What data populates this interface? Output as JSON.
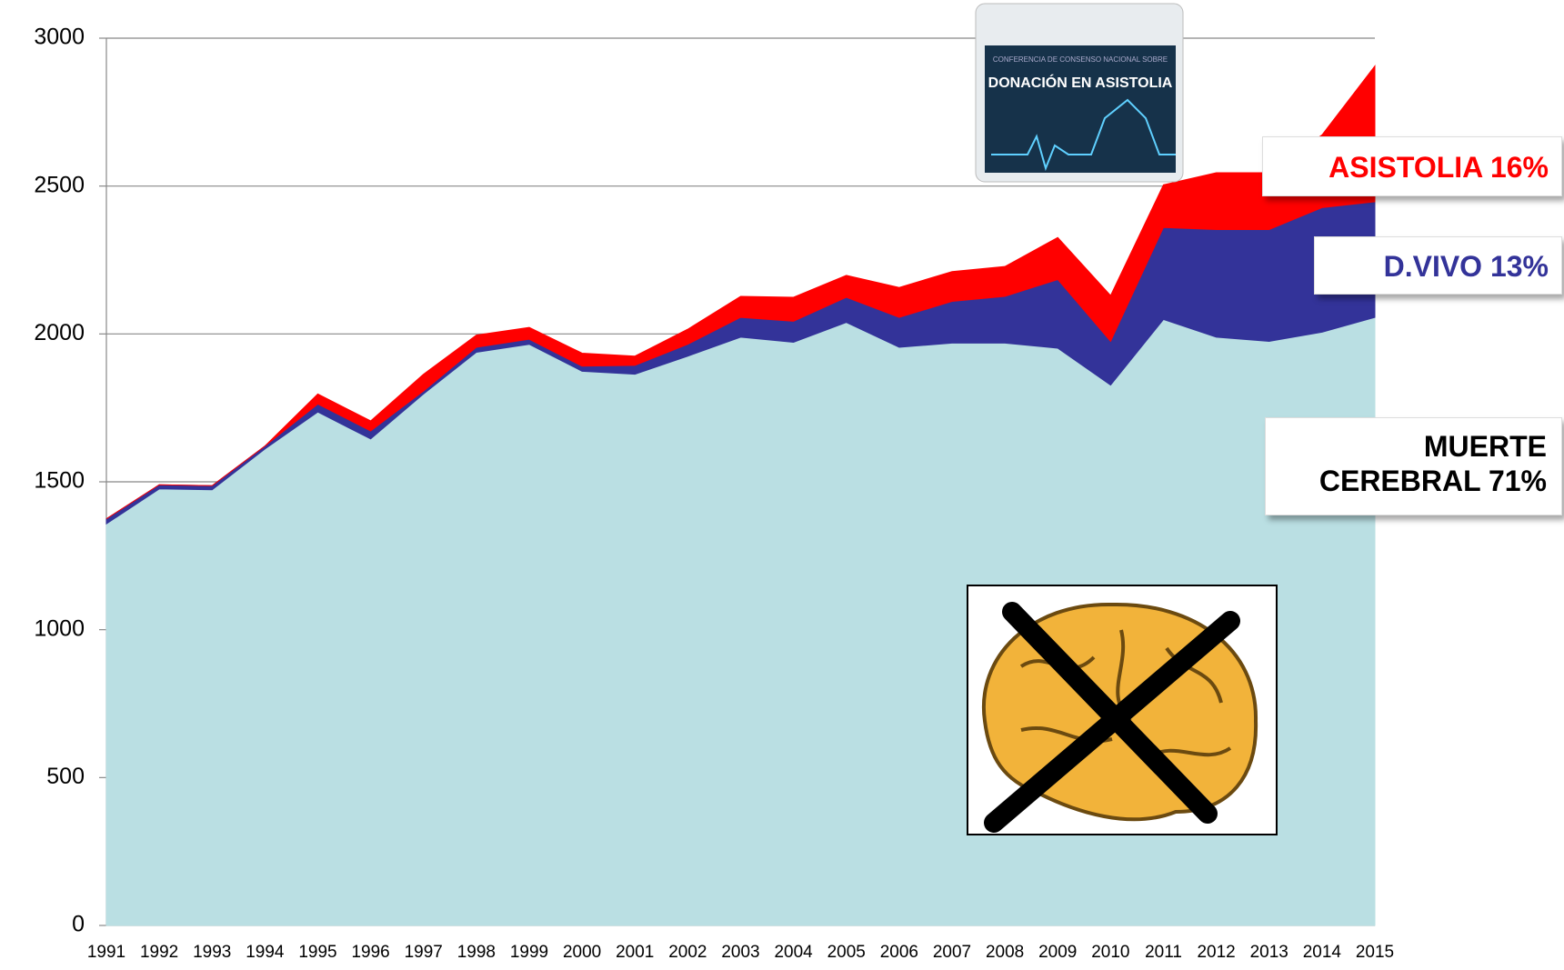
{
  "chart_data": {
    "type": "stacked_area",
    "categories": [
      "1991",
      "1992",
      "1993",
      "1994",
      "1995",
      "1996",
      "1997",
      "1998",
      "1999",
      "2000",
      "2001",
      "2002",
      "2003",
      "2004",
      "2005",
      "2006",
      "2007",
      "2008",
      "2009",
      "2010",
      "2011",
      "2012",
      "2013",
      "2014",
      "2015"
    ],
    "series": [
      {
        "name": "MUERTE CEREBRAL 71%",
        "color": "#badfe3",
        "label_color": "#000000",
        "values": [
          1358,
          1476,
          1473,
          1611,
          1736,
          1645,
          1797,
          1938,
          1965,
          1874,
          1864,
          1925,
          1989,
          1972,
          2039,
          1955,
          1969,
          1969,
          1952,
          1827,
          2049,
          1989,
          1975,
          2006,
          2056
        ]
      },
      {
        "name": "D.VIVO 13%",
        "color": "#333399",
        "label_color": "#333399",
        "values": [
          17,
          14,
          14,
          10,
          27,
          27,
          10,
          17,
          17,
          17,
          30,
          40,
          67,
          71,
          85,
          101,
          141,
          158,
          232,
          148,
          311,
          364,
          378,
          421,
          391
        ]
      },
      {
        "name": "ASISTOLIA 16%",
        "color": "#ff0000",
        "label_color": "#ff0000",
        "values": [
          0,
          0,
          0,
          0,
          34,
          34,
          57,
          41,
          40,
          44,
          31,
          51,
          71,
          81,
          74,
          101,
          101,
          101,
          142,
          155,
          144,
          192,
          192,
          246,
          459
        ]
      }
    ],
    "ylim": [
      0,
      3000
    ],
    "yticks": [
      0,
      500,
      1000,
      1500,
      2000,
      2500,
      3000
    ],
    "grid": true
  },
  "cover": {
    "line1": "CONFERENCIA DE CONSENSO NACIONAL SOBRE",
    "line2": "DONACIÓN EN ASISTOLIA"
  }
}
